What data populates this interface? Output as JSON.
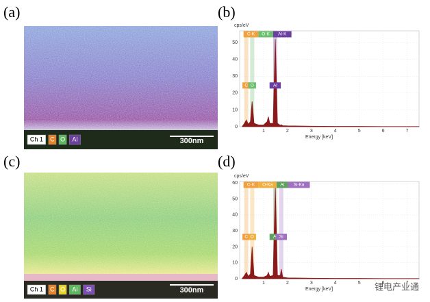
{
  "panels": [
    "(a)",
    "(b)",
    "(c)",
    "(d)"
  ],
  "maps": [
    {
      "channels": [
        {
          "label": "Ch 1",
          "color": "#ffffff"
        },
        {
          "label": "C",
          "color": "#e8832a"
        },
        {
          "label": "O",
          "color": "#5fb85f"
        },
        {
          "label": "Al",
          "color": "#6a3fa0"
        }
      ],
      "scale_bar": "300nm"
    },
    {
      "channels": [
        {
          "label": "Ch 1",
          "color": "#ffffff"
        },
        {
          "label": "C",
          "color": "#e8832a"
        },
        {
          "label": "O",
          "color": "#e8d62a"
        },
        {
          "label": "Al",
          "color": "#5fb85f"
        },
        {
          "label": "Si",
          "color": "#7a4fb0"
        }
      ],
      "scale_bar": "300nm"
    }
  ],
  "chart_data": [
    {
      "type": "area",
      "y_label": "cps/eV",
      "x_label": "Energy [keV]",
      "color": "#8b1a1a",
      "grid": true,
      "xlim": [
        0,
        7.5
      ],
      "ylim": [
        0,
        57
      ],
      "xticks": [
        1,
        2,
        3,
        4,
        5,
        6,
        7
      ],
      "yticks": [
        0,
        10,
        20,
        30,
        40,
        50
      ],
      "x": [
        0.1,
        0.2,
        0.28,
        0.36,
        0.45,
        0.52,
        0.6,
        0.8,
        1.0,
        1.15,
        1.2,
        1.26,
        1.4,
        1.49,
        1.58,
        1.7,
        1.74,
        1.8,
        2.0,
        3.0,
        4.0,
        5.0,
        6.0,
        7.0,
        7.5
      ],
      "values": [
        0,
        2,
        4,
        1.5,
        3,
        15,
        2,
        1,
        1,
        3,
        6,
        2,
        2,
        52,
        2,
        0.8,
        1.2,
        0.6,
        0.5,
        0.3,
        0.2,
        0.2,
        0.1,
        0.1,
        0.1
      ],
      "markers": [
        {
          "label": "C-K",
          "short": "C",
          "x": 0.277,
          "color": "#f0a040"
        },
        {
          "label": "O-K",
          "short": "O",
          "x": 0.525,
          "color": "#6cbf6c"
        },
        {
          "label": "Al-K",
          "short": "Al",
          "x": 1.486,
          "color": "#6a3fa0"
        }
      ]
    },
    {
      "type": "area",
      "y_label": "cps/eV",
      "x_label": "Energy [keV]",
      "color": "#8b1a1a",
      "grid": true,
      "xlim": [
        0,
        7.5
      ],
      "ylim": [
        0,
        61
      ],
      "xticks": [
        1,
        2,
        3,
        4,
        5,
        6,
        7
      ],
      "yticks": [
        0,
        10,
        20,
        30,
        40,
        50,
        60
      ],
      "x": [
        0.1,
        0.2,
        0.28,
        0.36,
        0.45,
        0.52,
        0.6,
        0.8,
        1.0,
        1.15,
        1.2,
        1.26,
        1.4,
        1.49,
        1.58,
        1.7,
        1.74,
        1.8,
        2.0,
        3.0,
        4.0,
        5.0,
        6.0,
        7.0,
        7.5
      ],
      "values": [
        0,
        2,
        4,
        1.5,
        3,
        20,
        2,
        1,
        1,
        2,
        4,
        1.5,
        2,
        58,
        2,
        2,
        6,
        1,
        0.5,
        0.3,
        0.2,
        0.2,
        0.1,
        0.1,
        0.1
      ],
      "markers": [
        {
          "label": "C-K",
          "short": "C",
          "x": 0.277,
          "color": "#f0a040"
        },
        {
          "label": "O-Ka",
          "short": "O",
          "x": 0.525,
          "color": "#f0b040"
        },
        {
          "label": "Al",
          "short": "Al",
          "x": 1.486,
          "color": "#5fa05f"
        },
        {
          "label": "Si-Ka",
          "short": "Si",
          "x": 1.74,
          "color": "#a070c0"
        }
      ]
    }
  ],
  "watermark": "锂电产业通"
}
